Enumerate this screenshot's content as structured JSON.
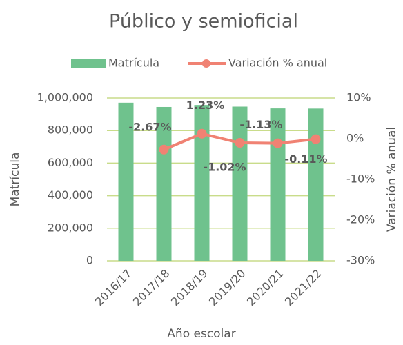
{
  "chart_data": {
    "type": "bar_line",
    "title": "Público y semioficial",
    "x_label": "Año escolar",
    "y_label": "Matrícula",
    "y2_label": "Variación % anual",
    "categories": [
      "2016/17",
      "2017/18",
      "2018/19",
      "2019/20",
      "2020/21",
      "2021/22"
    ],
    "series": [
      {
        "name": "Matrícula",
        "type": "bar",
        "color": "#6fc28d",
        "values": [
          971000,
          945000,
          957000,
          947000,
          936000,
          935000
        ]
      },
      {
        "name": "Variación % anual",
        "type": "line",
        "axis": "y2",
        "color": "#f08273",
        "values": [
          null,
          -2.67,
          1.23,
          -1.02,
          -1.13,
          -0.11
        ],
        "value_labels": [
          null,
          "-2.67%",
          "1.23%",
          "-1.02%",
          "-1.13%",
          "-0.11%"
        ]
      }
    ],
    "ylim": [
      0,
      1000000
    ],
    "yticks": [
      0,
      {
        "value": 200000,
        "label": "200,000"
      },
      {
        "value": 400000,
        "label": "400,000"
      },
      {
        "value": 600000,
        "label": "600,000"
      },
      {
        "value": 800000,
        "label": "800,000"
      },
      {
        "value": 1000000,
        "label": "1,000,000"
      }
    ],
    "y2lim": [
      -30,
      10
    ],
    "y2ticks": [
      {
        "value": -30,
        "label": "-30%"
      },
      {
        "value": -20,
        "label": "-20%"
      },
      {
        "value": -10,
        "label": "-10%"
      },
      {
        "value": 0,
        "label": "0%"
      },
      {
        "value": 10,
        "label": "10%"
      }
    ],
    "grid": true,
    "legend": "top"
  }
}
